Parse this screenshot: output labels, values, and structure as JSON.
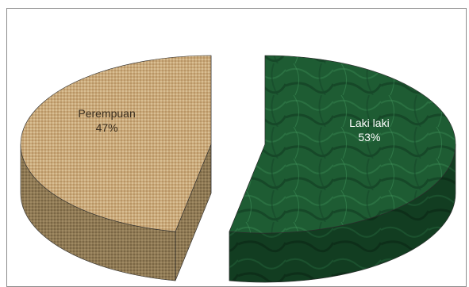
{
  "chart_data": {
    "type": "pie",
    "style": "3d-exploded",
    "slices": [
      {
        "label": "Perempuan",
        "value": 47,
        "value_label": "47%",
        "color": "#c9ad7e",
        "texture": "burlap"
      },
      {
        "label": "Laki laki",
        "value": 53,
        "value_label": "53%",
        "color": "#1f5e36",
        "texture": "marble"
      }
    ],
    "legend": "none",
    "labels_position": "inside"
  }
}
